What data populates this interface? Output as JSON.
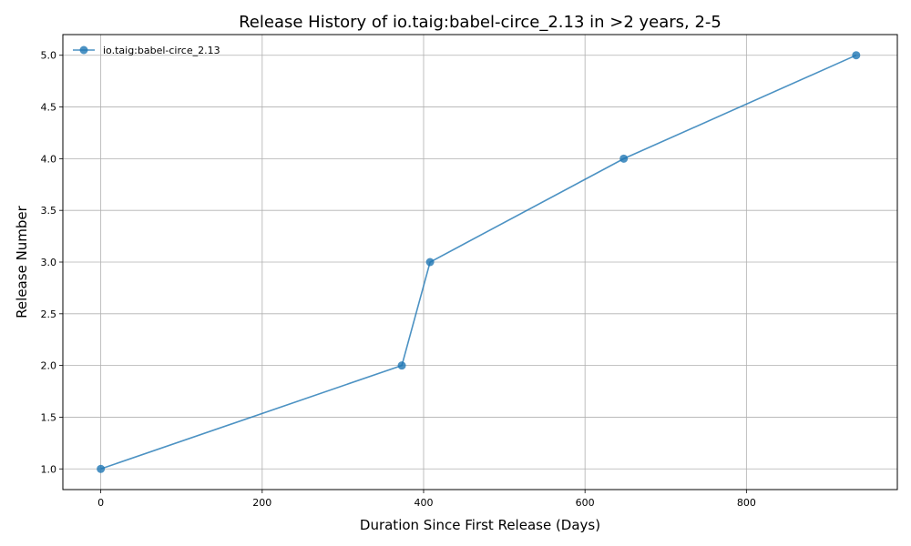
{
  "chart_data": {
    "type": "line",
    "title": "Release History of io.taig:babel-circe_2.13 in >2 years, 2-5",
    "xlabel": "Duration Since First Release (Days)",
    "ylabel": "Release Number",
    "xlim": [
      -47,
      987
    ],
    "ylim": [
      0.8,
      5.2
    ],
    "xticks": [
      0,
      200,
      400,
      600,
      800
    ],
    "yticks": [
      1.0,
      1.5,
      2.0,
      2.5,
      3.0,
      3.5,
      4.0,
      4.5,
      5.0
    ],
    "xtick_labels": [
      "0",
      "200",
      "400",
      "600",
      "800"
    ],
    "ytick_labels": [
      "1.0",
      "1.5",
      "2.0",
      "2.5",
      "3.0",
      "3.5",
      "4.0",
      "4.5",
      "5.0"
    ],
    "grid": true,
    "legend_position": "top-left",
    "series": [
      {
        "name": "io.taig:babel-circe_2.13",
        "color": "#1f77b4",
        "marker": "circle",
        "x": [
          0,
          373,
          408,
          648,
          936
        ],
        "y": [
          1,
          2,
          3,
          4,
          5
        ]
      }
    ]
  }
}
